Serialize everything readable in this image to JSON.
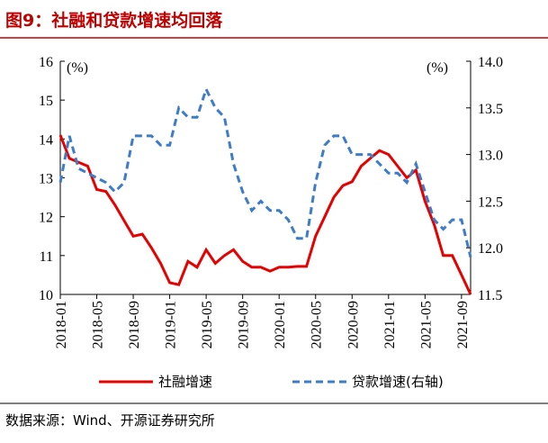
{
  "chart_data": {
    "type": "line",
    "title": "图9：社融和贷款增速均回落",
    "y_unit": "(%)",
    "y2_unit": "(%)",
    "source": "数据来源：Wind、开源证券研究所",
    "categories": [
      "2018-01",
      null,
      null,
      null,
      "2018-05",
      null,
      null,
      null,
      "2018-09",
      null,
      null,
      null,
      "2019-01",
      null,
      null,
      null,
      "2019-05",
      null,
      null,
      null,
      "2019-09",
      null,
      null,
      null,
      "2020-01",
      null,
      null,
      null,
      "2020-05",
      null,
      null,
      null,
      "2020-09",
      null,
      null,
      null,
      "2021-01",
      null,
      null,
      null,
      "2021-05",
      null,
      null,
      null,
      "2021-09",
      null
    ],
    "ylim": [
      10,
      16
    ],
    "yticks": [
      10,
      11,
      12,
      13,
      14,
      15,
      16
    ],
    "y2lim": [
      11.5,
      14.0
    ],
    "y2ticks": [
      11.5,
      {
        "value": 12.0,
        "label": "12.0"
      },
      12.5,
      {
        "value": 13.0,
        "label": "13.0"
      },
      13.5,
      {
        "value": 14.0,
        "label": "14.0"
      }
    ],
    "series": [
      {
        "name": "社融增速",
        "color": "#e60000",
        "dash": false,
        "values": [
          14.1,
          13.5,
          13.4,
          13.3,
          12.7,
          12.65,
          12.3,
          11.9,
          11.5,
          11.55,
          11.2,
          10.8,
          10.3,
          10.25,
          10.85,
          10.7,
          11.15,
          10.8,
          11.0,
          11.15,
          10.85,
          10.7,
          10.7,
          10.6,
          10.7,
          10.7,
          10.72,
          10.72,
          11.5,
          12.0,
          12.5,
          12.8,
          12.9,
          13.3,
          13.5,
          13.7,
          13.6,
          13.3,
          13.0,
          13.2,
          12.4,
          11.8,
          11.0,
          11.0,
          10.5,
          10.0
        ]
      },
      {
        "name": "贷款增速(右轴)",
        "color": "#3d7cc9",
        "dash": true,
        "axis": "y2",
        "values": [
          12.7,
          13.2,
          12.85,
          12.8,
          12.75,
          12.7,
          12.6,
          12.7,
          13.2,
          13.2,
          13.2,
          13.1,
          13.1,
          13.5,
          13.4,
          13.4,
          13.7,
          13.5,
          13.4,
          12.9,
          12.6,
          12.4,
          12.5,
          12.4,
          12.4,
          12.3,
          12.1,
          12.1,
          12.7,
          13.1,
          13.2,
          13.2,
          13.0,
          13.0,
          13.0,
          12.9,
          12.8,
          12.8,
          12.7,
          12.9,
          12.6,
          12.3,
          12.2,
          12.3,
          12.3,
          11.9
        ]
      }
    ]
  }
}
